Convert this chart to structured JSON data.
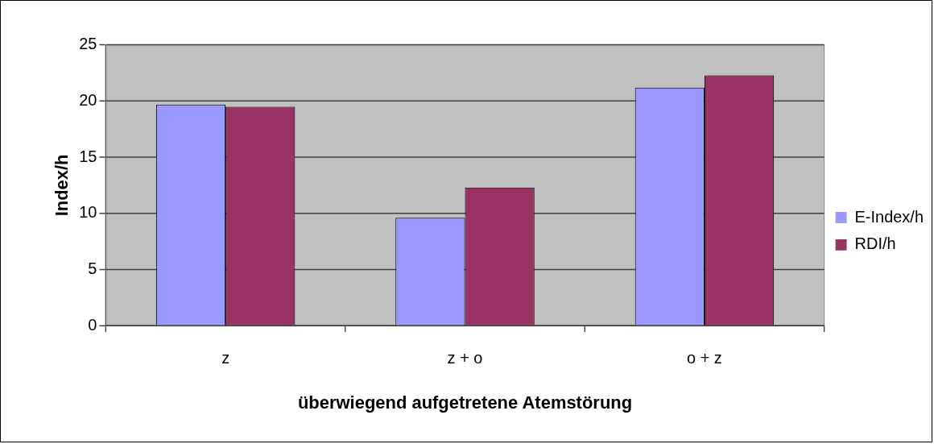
{
  "chart_data": {
    "type": "bar",
    "xlabel": "überwiegend aufgetretene Atemstörung",
    "ylabel": "Index/h",
    "categories": [
      "z",
      "z + o",
      "o + z"
    ],
    "series": [
      {
        "name": "E-Index/h",
        "color": "#9999ff",
        "values": [
          19.7,
          9.6,
          21.2
        ]
      },
      {
        "name": "RDI/h",
        "color": "#993366",
        "values": [
          19.5,
          12.3,
          22.3
        ]
      }
    ],
    "ylim": [
      0,
      25
    ],
    "yticks": [
      0,
      5,
      10,
      15,
      20,
      25
    ],
    "grid": "y",
    "legend": "right"
  }
}
